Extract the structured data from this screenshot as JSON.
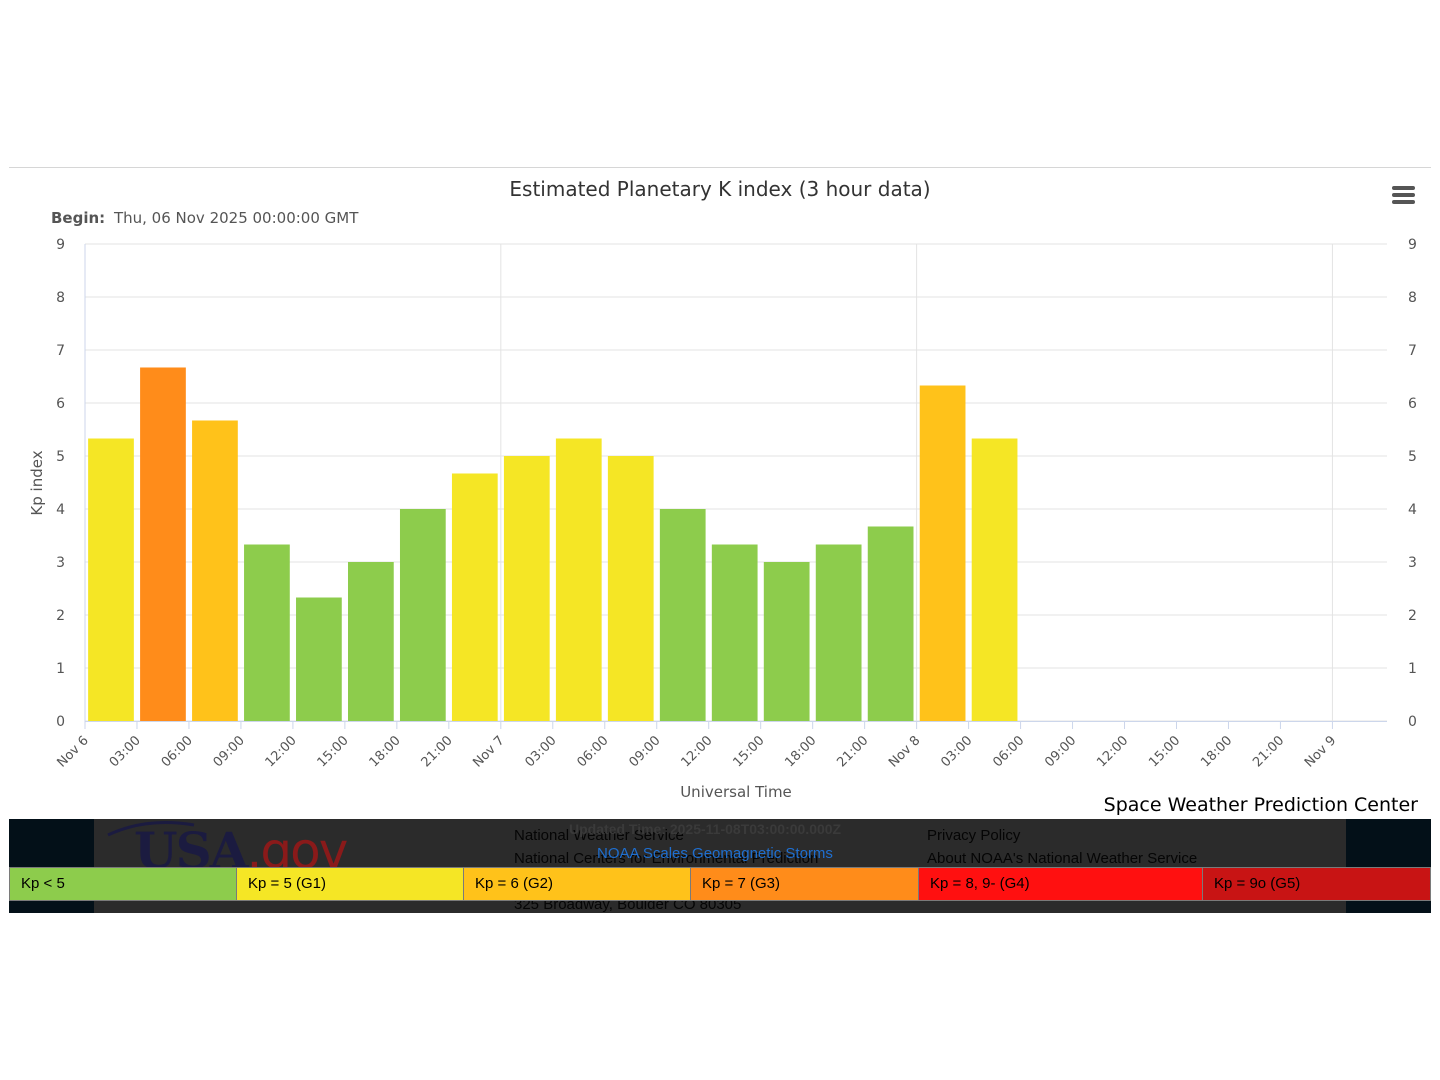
{
  "chart_data": {
    "type": "bar",
    "title": "Estimated Planetary K index (3 hour data)",
    "subtitle_label": "Begin:",
    "subtitle_value": "Thu, 06 Nov 2025 00:00:00 GMT",
    "xlabel": "Universal Time",
    "ylabel": "Kp index",
    "ylim": [
      0,
      9
    ],
    "yticks": [
      "0",
      "1",
      "2",
      "3",
      "4",
      "5",
      "6",
      "7",
      "8",
      "9"
    ],
    "xticks": [
      "Nov 6",
      "03:00",
      "06:00",
      "09:00",
      "12:00",
      "15:00",
      "18:00",
      "21:00",
      "Nov 7",
      "03:00",
      "06:00",
      "09:00",
      "12:00",
      "15:00",
      "18:00",
      "21:00",
      "Nov 8",
      "03:00",
      "06:00",
      "09:00",
      "12:00",
      "15:00",
      "18:00",
      "21:00",
      "Nov 9"
    ],
    "x": [
      "Nov 6 00:00",
      "Nov 6 03:00",
      "Nov 6 06:00",
      "Nov 6 09:00",
      "Nov 6 12:00",
      "Nov 6 15:00",
      "Nov 6 18:00",
      "Nov 6 21:00",
      "Nov 7 00:00",
      "Nov 7 03:00",
      "Nov 7 06:00",
      "Nov 7 09:00",
      "Nov 7 12:00",
      "Nov 7 15:00",
      "Nov 7 18:00",
      "Nov 7 21:00",
      "Nov 8 00:00",
      "Nov 8 03:00"
    ],
    "values": [
      5.33,
      6.67,
      5.67,
      3.33,
      2.33,
      3.0,
      4.0,
      4.67,
      5.0,
      5.33,
      5.0,
      4.0,
      3.33,
      3.0,
      3.33,
      3.67,
      6.33,
      5.33
    ],
    "bar_colors": [
      "#f5e625",
      "#ff8c1a",
      "#ffc21a",
      "#8dcc4c",
      "#8dcc4c",
      "#8dcc4c",
      "#8dcc4c",
      "#f5e625",
      "#f5e625",
      "#f5e625",
      "#f5e625",
      "#8dcc4c",
      "#8dcc4c",
      "#8dcc4c",
      "#8dcc4c",
      "#8dcc4c",
      "#ffc21a",
      "#f5e625"
    ],
    "grid": true,
    "dual_y_axis": true
  },
  "credit": "Space Weather Prediction Center",
  "menu_icon": "hamburger-menu-icon",
  "footer": {
    "logo_main": "USA",
    "logo_suffix": ".gov",
    "col1": [
      "National Weather Service",
      "National Centers for Environmental Prediction",
      "325 Broadway, Boulder CO 80305"
    ],
    "col2": [
      "Privacy Policy",
      "About NOAA's National Weather Service"
    ],
    "updated": "Updated Time: 2025-11-08T03:00:00.000Z",
    "scales_link": "NOAA Scales Geomagnetic Storms"
  },
  "legend": [
    {
      "label": "Kp < 5",
      "color": "#8dcc4c"
    },
    {
      "label": "Kp = 5 (G1)",
      "color": "#f5e625"
    },
    {
      "label": "Kp = 6 (G2)",
      "color": "#ffc21a"
    },
    {
      "label": "Kp = 7 (G3)",
      "color": "#ff8c1a"
    },
    {
      "label": "Kp = 8, 9- (G4)",
      "color": "#ff1010"
    },
    {
      "label": "Kp = 9o (G5)",
      "color": "#c81414"
    }
  ]
}
